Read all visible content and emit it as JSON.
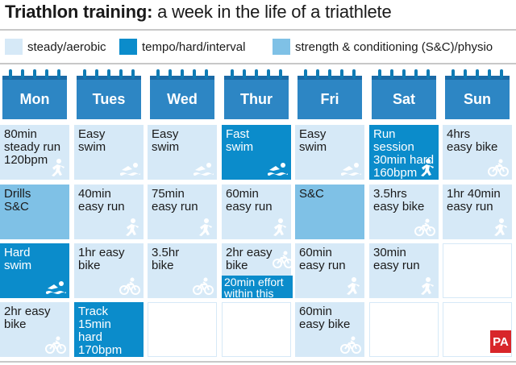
{
  "title": {
    "bold": "Triathlon training:",
    "rest": " a week in the life of a triathlete"
  },
  "legend": [
    {
      "label": "steady/aerobic",
      "color": "#d6e9f7"
    },
    {
      "label": "tempo/hard/interval",
      "color": "#0b8ccb"
    },
    {
      "label": "strength & conditioning (S&C)/physio",
      "color": "#7fc1e6"
    }
  ],
  "days": [
    "Mon",
    "Tues",
    "Wed",
    "Thur",
    "Fri",
    "Sat",
    "Sun"
  ],
  "rows": [
    [
      {
        "text": "80min\nsteady run\n120bpm",
        "type": "steady",
        "icon": "run-icon"
      },
      {
        "text": "Easy\nswim",
        "type": "steady",
        "icon": "swim-icon"
      },
      {
        "text": "Easy\nswim",
        "type": "steady",
        "icon": "swim-icon"
      },
      {
        "text": "Fast\nswim",
        "type": "tempo",
        "icon": "swim-icon"
      },
      {
        "text": "Easy\nswim",
        "type": "steady",
        "icon": "swim-icon"
      },
      {
        "text": "Run session\n30min hard\n160bpm",
        "type": "tempo",
        "icon": "run-icon"
      },
      {
        "text": "4hrs\neasy bike",
        "type": "steady",
        "icon": "bike-icon"
      }
    ],
    [
      {
        "text": "Drills\nS&C",
        "type": "sc",
        "icon": ""
      },
      {
        "text": "40min\neasy run",
        "type": "steady",
        "icon": "run-icon"
      },
      {
        "text": "75min\neasy run",
        "type": "steady",
        "icon": "run-icon"
      },
      {
        "text": "60min\neasy run",
        "type": "steady",
        "icon": "run-icon"
      },
      {
        "text": "S&C",
        "type": "sc",
        "icon": ""
      },
      {
        "text": "3.5hrs\neasy bike",
        "type": "steady",
        "icon": "bike-icon"
      },
      {
        "text": "1hr 40min\neasy run",
        "type": "steady",
        "icon": "run-icon"
      }
    ],
    [
      {
        "text": "Hard\nswim",
        "type": "tempo",
        "icon": "swim-icon"
      },
      {
        "text": "1hr easy\nbike",
        "type": "steady",
        "icon": "bike-icon"
      },
      {
        "text": "3.5hr\nbike",
        "type": "steady",
        "icon": "bike-icon"
      },
      {
        "text": "2hr easy\nbike",
        "type": "steady",
        "icon": "bike-icon"
      },
      {
        "text": "60min\neasy run",
        "type": "steady",
        "icon": "run-icon"
      },
      {
        "text": "30min\neasy run",
        "type": "steady",
        "icon": "run-icon"
      },
      {
        "text": "",
        "type": "empty",
        "icon": ""
      }
    ],
    [
      {
        "text": "2hr easy\nbike",
        "type": "steady",
        "icon": "bike-icon"
      },
      {
        "text": "Track 15min\nhard\n170bpm",
        "type": "tempo",
        "icon": ""
      },
      {
        "text": "",
        "type": "empty",
        "icon": ""
      },
      {
        "text": "",
        "type": "empty",
        "icon": ""
      },
      {
        "text": "60min\neasy bike",
        "type": "steady",
        "icon": "bike-icon"
      },
      {
        "text": "",
        "type": "empty",
        "icon": ""
      },
      {
        "text": "",
        "type": "empty",
        "icon": ""
      }
    ]
  ],
  "thur_bike_note": "20min effort\nwithin this",
  "logo": "PA"
}
